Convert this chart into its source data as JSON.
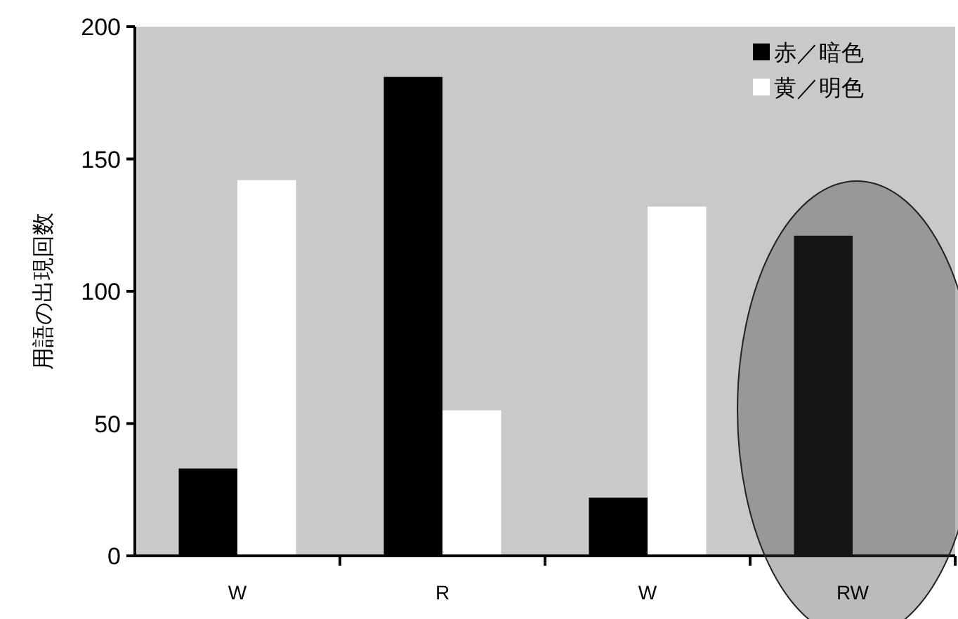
{
  "chart_data": {
    "type": "bar",
    "ylabel": "用語の出現回数",
    "categories": [
      "W",
      "R",
      "W",
      "RW"
    ],
    "series": [
      {
        "name": "赤／暗色",
        "color": "#000000",
        "values": [
          33,
          181,
          22,
          121
        ]
      },
      {
        "name": "黄／明色",
        "color": "#ffffff",
        "values": [
          142,
          55,
          132,
          null
        ]
      }
    ],
    "ylim": [
      0,
      200
    ],
    "yticks": [
      0,
      50,
      100,
      150,
      200
    ],
    "grid": false,
    "legend": "top right"
  }
}
